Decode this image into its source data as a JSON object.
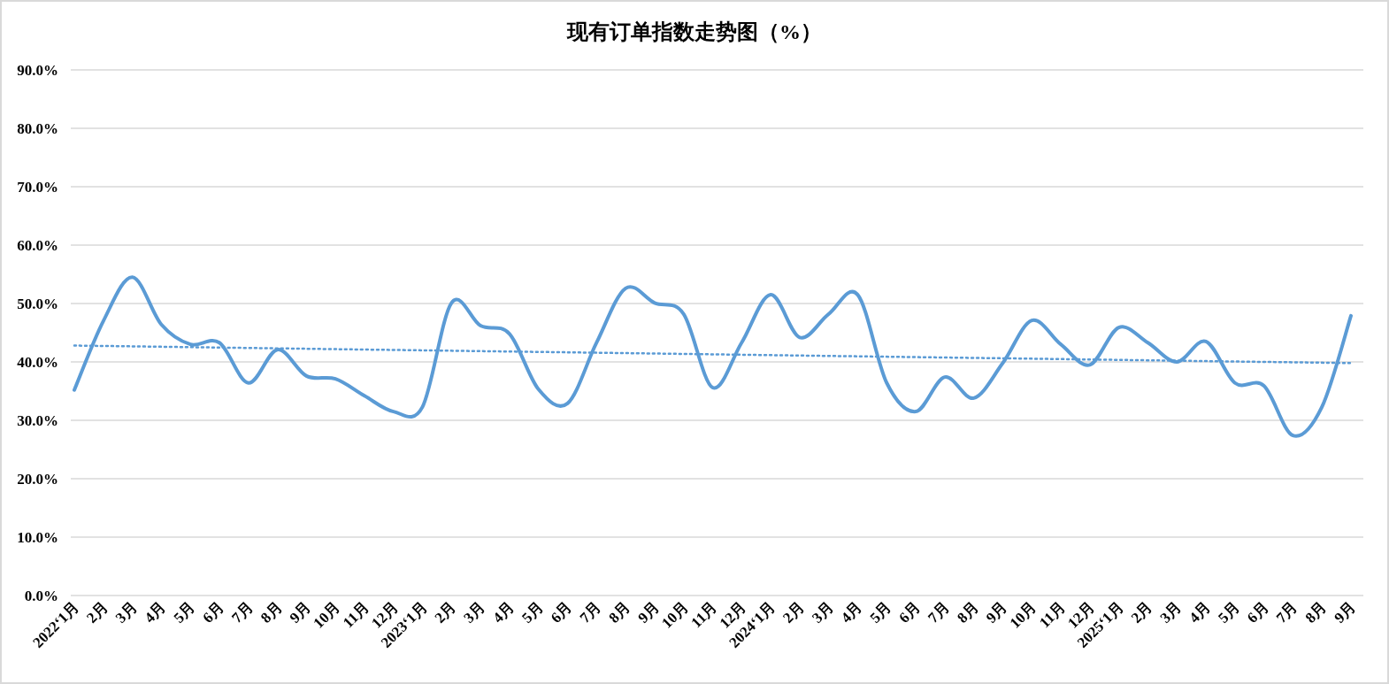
{
  "chart_data": {
    "type": "line",
    "title": "现有订单指数走势图（%）",
    "categories": [
      "2022‘1月",
      "2月",
      "3月",
      "4月",
      "5月",
      "6月",
      "7月",
      "8月",
      "9月",
      "10月",
      "11月",
      "12月",
      "2023‘1月",
      "2月",
      "3月",
      "4月",
      "5月",
      "6月",
      "7月",
      "8月",
      "9月",
      "10月",
      "11月",
      "12月",
      "2024‘1月",
      "2月",
      "3月",
      "4月",
      "5月",
      "6月",
      "7月",
      "8月",
      "9月",
      "10月",
      "11月",
      "12月",
      "2025‘1月",
      "2月",
      "3月",
      "4月",
      "5月",
      "6月",
      "7月",
      "8月",
      "9月"
    ],
    "series": [
      {
        "color": "#5b9bd5",
        "line_style": "solid",
        "values": [
          35.2,
          47,
          54.5,
          46.4,
          43.0,
          43.3,
          36.4,
          42.1,
          37.6,
          37.1,
          34.2,
          31.5,
          32.3,
          50.1,
          46.2,
          44.8,
          35.3,
          32.9,
          43.3,
          52.6,
          50.1,
          48.2,
          35.6,
          43.3,
          51.5,
          44.2,
          48.2,
          51.5,
          36.4,
          31.5,
          37.4,
          33.8,
          39.8,
          47.1,
          43.0,
          39.5,
          45.9,
          43.3,
          40.0,
          43.5,
          36.4,
          35.9,
          27.4,
          32.3,
          47.9
        ]
      },
      {
        "color": "#5b9bd5",
        "line_style": "dotted",
        "values": [
          42.8,
          null,
          null,
          null,
          null,
          null,
          null,
          null,
          null,
          null,
          null,
          null,
          null,
          null,
          null,
          null,
          null,
          null,
          null,
          null,
          null,
          null,
          null,
          null,
          null,
          null,
          null,
          null,
          null,
          null,
          null,
          null,
          null,
          null,
          null,
          null,
          null,
          null,
          null,
          null,
          null,
          null,
          null,
          null,
          39.8
        ]
      }
    ],
    "ylim": [
      0,
      90
    ],
    "yticks": [
      {
        "value": 0,
        "label": "0.0%"
      },
      {
        "value": 10,
        "label": "10.0%"
      },
      {
        "value": 20,
        "label": "20.0%"
      },
      {
        "value": 30,
        "label": "30.0%"
      },
      {
        "value": 40,
        "label": "40.0%"
      },
      {
        "value": 50,
        "label": "50.0%"
      },
      {
        "value": 60,
        "label": "60.0%"
      },
      {
        "value": 70,
        "label": "70.0%"
      },
      {
        "value": 80,
        "label": "80.0%"
      },
      {
        "value": 90,
        "label": "90.0%"
      }
    ],
    "grid": "y",
    "marker": "none"
  }
}
